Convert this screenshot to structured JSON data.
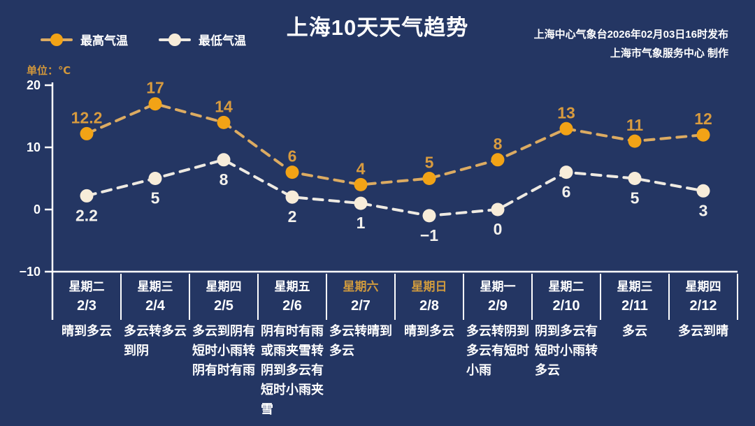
{
  "header": {
    "publisher_line1": "上海中心气象台2026年02月03日16时发布",
    "publisher_line2": "上海市气象服务中心 制作"
  },
  "colors": {
    "background": "#243663",
    "axis": "#ffffff",
    "text": "#ffffff",
    "weekend_label": "#cf9a3e",
    "unit_label": "#d1973b",
    "high": {
      "line": "#dcab62",
      "marker": "#f2a316",
      "label": "#d89b3f"
    },
    "low": {
      "line": "#eeeae2",
      "marker": "#f7ecd9",
      "label": "#f3f1ec"
    }
  },
  "chart_data": {
    "type": "line",
    "title": "上海10天天气趋势",
    "ylabel": "单位：℃",
    "unit": "℃",
    "y_ticks": [
      20,
      10,
      0,
      -10
    ],
    "ylim": [
      -10,
      20
    ],
    "grid": false,
    "legend_position": "top-left",
    "categories": [
      "2/3",
      "2/4",
      "2/5",
      "2/6",
      "2/7",
      "2/8",
      "2/9",
      "2/10",
      "2/11",
      "2/12"
    ],
    "days": [
      {
        "weekday": "星期二",
        "date": "2/3",
        "weather": "晴到多云",
        "is_weekend": false
      },
      {
        "weekday": "星期三",
        "date": "2/4",
        "weather": "多云转多云到阴",
        "is_weekend": false
      },
      {
        "weekday": "星期四",
        "date": "2/5",
        "weather": "多云到阴有短时小雨转阴有时有雨",
        "is_weekend": false
      },
      {
        "weekday": "星期五",
        "date": "2/6",
        "weather": "阴有时有雨或雨夹雪转阴到多云有短时小雨夹雪",
        "is_weekend": false
      },
      {
        "weekday": "星期六",
        "date": "2/7",
        "weather": "多云转晴到多云",
        "is_weekend": true
      },
      {
        "weekday": "星期日",
        "date": "2/8",
        "weather": "晴到多云",
        "is_weekend": true
      },
      {
        "weekday": "星期一",
        "date": "2/9",
        "weather": "多云转阴到多云有短时小雨",
        "is_weekend": false
      },
      {
        "weekday": "星期二",
        "date": "2/10",
        "weather": "阴到多云有短时小雨转多云",
        "is_weekend": false
      },
      {
        "weekday": "星期三",
        "date": "2/11",
        "weather": "多云",
        "is_weekend": false
      },
      {
        "weekday": "星期四",
        "date": "2/12",
        "weather": "多云到晴",
        "is_weekend": false
      }
    ],
    "series": [
      {
        "name": "最高气温",
        "values": [
          12.2,
          17,
          14,
          6,
          4,
          5,
          8,
          13,
          11,
          12
        ]
      },
      {
        "name": "最低气温",
        "values": [
          2.2,
          5,
          8,
          2,
          1,
          -1,
          0,
          6,
          5,
          3
        ]
      }
    ]
  }
}
